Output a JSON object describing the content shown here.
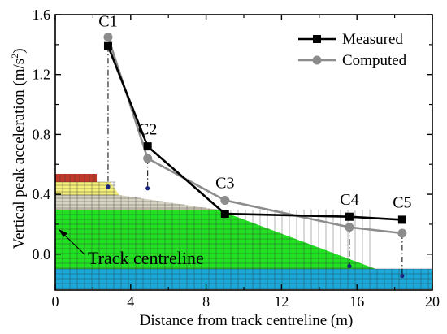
{
  "chart_data": {
    "type": "line",
    "xlabel": "Distance from track centreline (m)",
    "ylabel_main": "Vertical peak acceleration (m/s",
    "ylabel_sup": "2",
    "ylabel_close": ")",
    "xlim": [
      0,
      20
    ],
    "ylim": [
      -0.24,
      1.6
    ],
    "xticks": [
      0,
      4,
      8,
      12,
      16,
      20
    ],
    "yticks": [
      0.0,
      0.4,
      0.8,
      1.2,
      1.6
    ],
    "xtick_labels": [
      "0",
      "4",
      "8",
      "12",
      "16",
      "20"
    ],
    "ytick_labels": [
      "0.0",
      "0.4",
      "0.8",
      "1.2",
      "1.6"
    ],
    "grid": false,
    "legend_position": "top-right",
    "series": [
      {
        "name": "Measured",
        "marker": "square",
        "color": "#000000",
        "x": [
          2.8,
          4.9,
          9.0,
          15.6,
          18.4
        ],
        "y": [
          1.39,
          0.72,
          0.27,
          0.25,
          0.23
        ]
      },
      {
        "name": "Computed",
        "marker": "circle",
        "color": "#8c8c8c",
        "x": [
          2.8,
          4.9,
          9.0,
          15.6,
          18.4
        ],
        "y": [
          1.45,
          0.64,
          0.36,
          0.18,
          0.14
        ]
      }
    ],
    "point_labels": [
      {
        "text": "C1",
        "x": 2.8,
        "y": 1.52
      },
      {
        "text": "C2",
        "x": 4.9,
        "y": 0.8
      },
      {
        "text": "C3",
        "x": 9.0,
        "y": 0.44
      },
      {
        "text": "C4",
        "x": 15.6,
        "y": 0.33
      },
      {
        "text": "C5",
        "x": 18.4,
        "y": 0.31
      }
    ],
    "sensor_x": [
      2.8,
      4.9,
      9.0,
      15.6,
      18.4
    ],
    "annotation": "Track  centreline",
    "background_colors": {
      "rail": "#c0392b",
      "ballast": "#f5f07a",
      "sub_ballast": "#d8d4c4",
      "embankment": "#22e022",
      "subsoil": "#1aa9d9",
      "mesh": "#333333"
    }
  }
}
